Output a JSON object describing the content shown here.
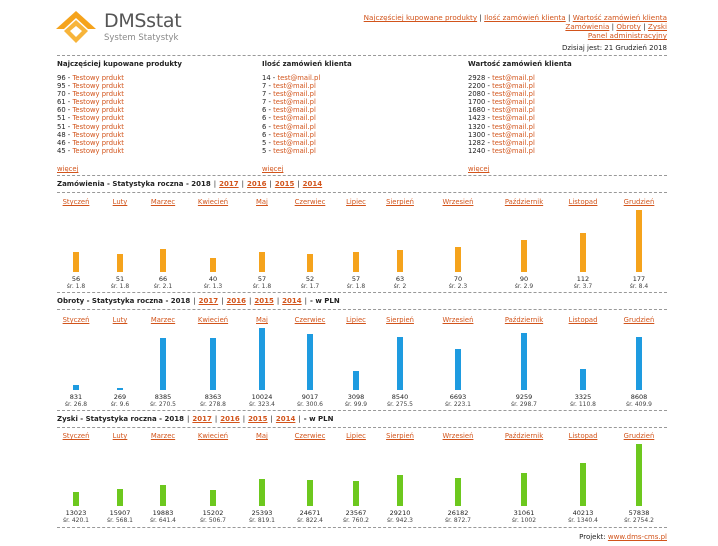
{
  "header": {
    "brand": "DMSstat",
    "subtitle": "System Statystyk",
    "links": [
      "Najczęściej kupowane produkty",
      "Ilość zamówień klienta",
      "Wartość zamówień klienta",
      "Zamówienia",
      "Obroty",
      "Zyski",
      "Panel administracyjny"
    ],
    "date_label": "Dzisiaj jest: 21 Grudzień 2018"
  },
  "top_products": {
    "title": "Najczęściej kupowane produkty",
    "rows": [
      {
        "count": "96",
        "name": "Testowy prdukt"
      },
      {
        "count": "95",
        "name": "Testowy prdukt"
      },
      {
        "count": "70",
        "name": "Testowy prdukt"
      },
      {
        "count": "61",
        "name": "Testowy prdukt"
      },
      {
        "count": "60",
        "name": "Testowy prdukt"
      },
      {
        "count": "51",
        "name": "Testowy prdukt"
      },
      {
        "count": "51",
        "name": "Testowy prdukt"
      },
      {
        "count": "48",
        "name": "Testowy prdukt"
      },
      {
        "count": "46",
        "name": "Testowy prdukt"
      },
      {
        "count": "45",
        "name": "Testowy prdukt"
      }
    ],
    "more": "więcej"
  },
  "order_counts": {
    "title": "Ilość zamówień klienta",
    "rows": [
      {
        "count": "14",
        "email": "test@mail.pl"
      },
      {
        "count": "7",
        "email": "test@mail.pl"
      },
      {
        "count": "7",
        "email": "test@mail.pl"
      },
      {
        "count": "7",
        "email": "test@mail.pl"
      },
      {
        "count": "6",
        "email": "test@mail.pl"
      },
      {
        "count": "6",
        "email": "test@mail.pl"
      },
      {
        "count": "6",
        "email": "test@mail.pl"
      },
      {
        "count": "6",
        "email": "test@mail.pl"
      },
      {
        "count": "5",
        "email": "test@mail.pl"
      },
      {
        "count": "5",
        "email": "test@mail.pl"
      }
    ],
    "more": "więcej"
  },
  "order_values": {
    "title": "Wartość zamówień klienta",
    "rows": [
      {
        "count": "2928",
        "email": "test@mail.pl"
      },
      {
        "count": "2200",
        "email": "test@mail.pl"
      },
      {
        "count": "2080",
        "email": "test@mail.pl"
      },
      {
        "count": "1700",
        "email": "test@mail.pl"
      },
      {
        "count": "1680",
        "email": "test@mail.pl"
      },
      {
        "count": "1423",
        "email": "test@mail.pl"
      },
      {
        "count": "1320",
        "email": "test@mail.pl"
      },
      {
        "count": "1300",
        "email": "test@mail.pl"
      },
      {
        "count": "1282",
        "email": "test@mail.pl"
      },
      {
        "count": "1240",
        "email": "test@mail.pl"
      }
    ],
    "more": "więcej"
  },
  "months": [
    "Styczeń",
    "Luty",
    "Marzec",
    "Kwiecień",
    "Maj",
    "Czerwiec",
    "Lipiec",
    "Sierpień",
    "Wrzesień",
    "Październik",
    "Listopad",
    "Grudzień"
  ],
  "colors": {
    "orders": "#f5a31c",
    "revenue": "#1e9be0",
    "profit": "#6dc81e",
    "accent": "#d2541b"
  },
  "chart_data": [
    {
      "type": "bar",
      "title": "Zamówienia - Statystyka roczna - 2018",
      "year_links": [
        "2017",
        "2016",
        "2015",
        "2014"
      ],
      "suffix": "",
      "categories": [
        "Styczeń",
        "Luty",
        "Marzec",
        "Kwiecień",
        "Maj",
        "Czerwiec",
        "Lipiec",
        "Sierpień",
        "Wrzesień",
        "Październik",
        "Listopad",
        "Grudzień"
      ],
      "values": [
        56,
        51,
        66,
        40,
        57,
        52,
        57,
        63,
        70,
        90,
        112,
        177
      ],
      "value_labels": [
        "56",
        "51",
        "66",
        "40",
        "57",
        "52",
        "57",
        "63",
        "70",
        "90",
        "112",
        "177"
      ],
      "averages": [
        "śr. 1.8",
        "śr. 1.8",
        "śr. 2.1",
        "śr. 1.3",
        "śr. 1.8",
        "śr. 1.7",
        "śr. 1.8",
        "śr. 2",
        "śr. 2.3",
        "śr. 2.9",
        "śr. 3.7",
        "śr. 8.4"
      ],
      "ylim": [
        0,
        177
      ]
    },
    {
      "type": "bar",
      "title": "Obroty - Statystyka roczna - 2018",
      "year_links": [
        "2017",
        "2016",
        "2015",
        "2014"
      ],
      "suffix": "- w PLN",
      "categories": [
        "Styczeń",
        "Luty",
        "Marzec",
        "Kwiecień",
        "Maj",
        "Czerwiec",
        "Lipiec",
        "Sierpień",
        "Wrzesień",
        "Październik",
        "Listopad",
        "Grudzień"
      ],
      "values": [
        831,
        269,
        8385,
        8363,
        10024,
        9017,
        3098,
        8540,
        6693,
        9259,
        3325,
        8608
      ],
      "value_labels": [
        "831",
        "269",
        "8385",
        "8363",
        "10024",
        "9017",
        "3098",
        "8540",
        "6693",
        "9259",
        "3325",
        "8608"
      ],
      "averages": [
        "śr. 26.8",
        "śr. 9.6",
        "śr. 270.5",
        "śr. 278.8",
        "śr. 323.4",
        "śr. 300.6",
        "śr. 99.9",
        "śr. 275.5",
        "śr. 223.1",
        "śr. 298.7",
        "śr. 110.8",
        "śr. 409.9"
      ],
      "ylim": [
        0,
        10024
      ]
    },
    {
      "type": "bar",
      "title": "Zyski - Statystyka roczna - 2018",
      "year_links": [
        "2017",
        "2016",
        "2015",
        "2014"
      ],
      "suffix": "- w PLN",
      "categories": [
        "Styczeń",
        "Luty",
        "Marzec",
        "Kwiecień",
        "Maj",
        "Czerwiec",
        "Lipiec",
        "Sierpień",
        "Wrzesień",
        "Październik",
        "Listopad",
        "Grudzień"
      ],
      "values": [
        13023,
        15907,
        19883,
        15202,
        25393,
        24671,
        23567,
        29210,
        26182,
        31061,
        40213,
        57838
      ],
      "value_labels": [
        "13023",
        "15907",
        "19883",
        "15202",
        "25393",
        "24671",
        "23567",
        "29210",
        "26182",
        "31061",
        "40213",
        "57838"
      ],
      "averages": [
        "śr. 420.1",
        "śr. 568.1",
        "śr. 641.4",
        "śr. 506.7",
        "śr. 819.1",
        "śr. 822.4",
        "śr. 760.2",
        "śr. 942.3",
        "śr. 872.7",
        "śr. 1002",
        "śr. 1340.4",
        "śr. 2754.2"
      ],
      "ylim": [
        0,
        57838
      ]
    }
  ],
  "footer": {
    "label": "Projekt:",
    "link": "www.dms-cms.pl"
  }
}
